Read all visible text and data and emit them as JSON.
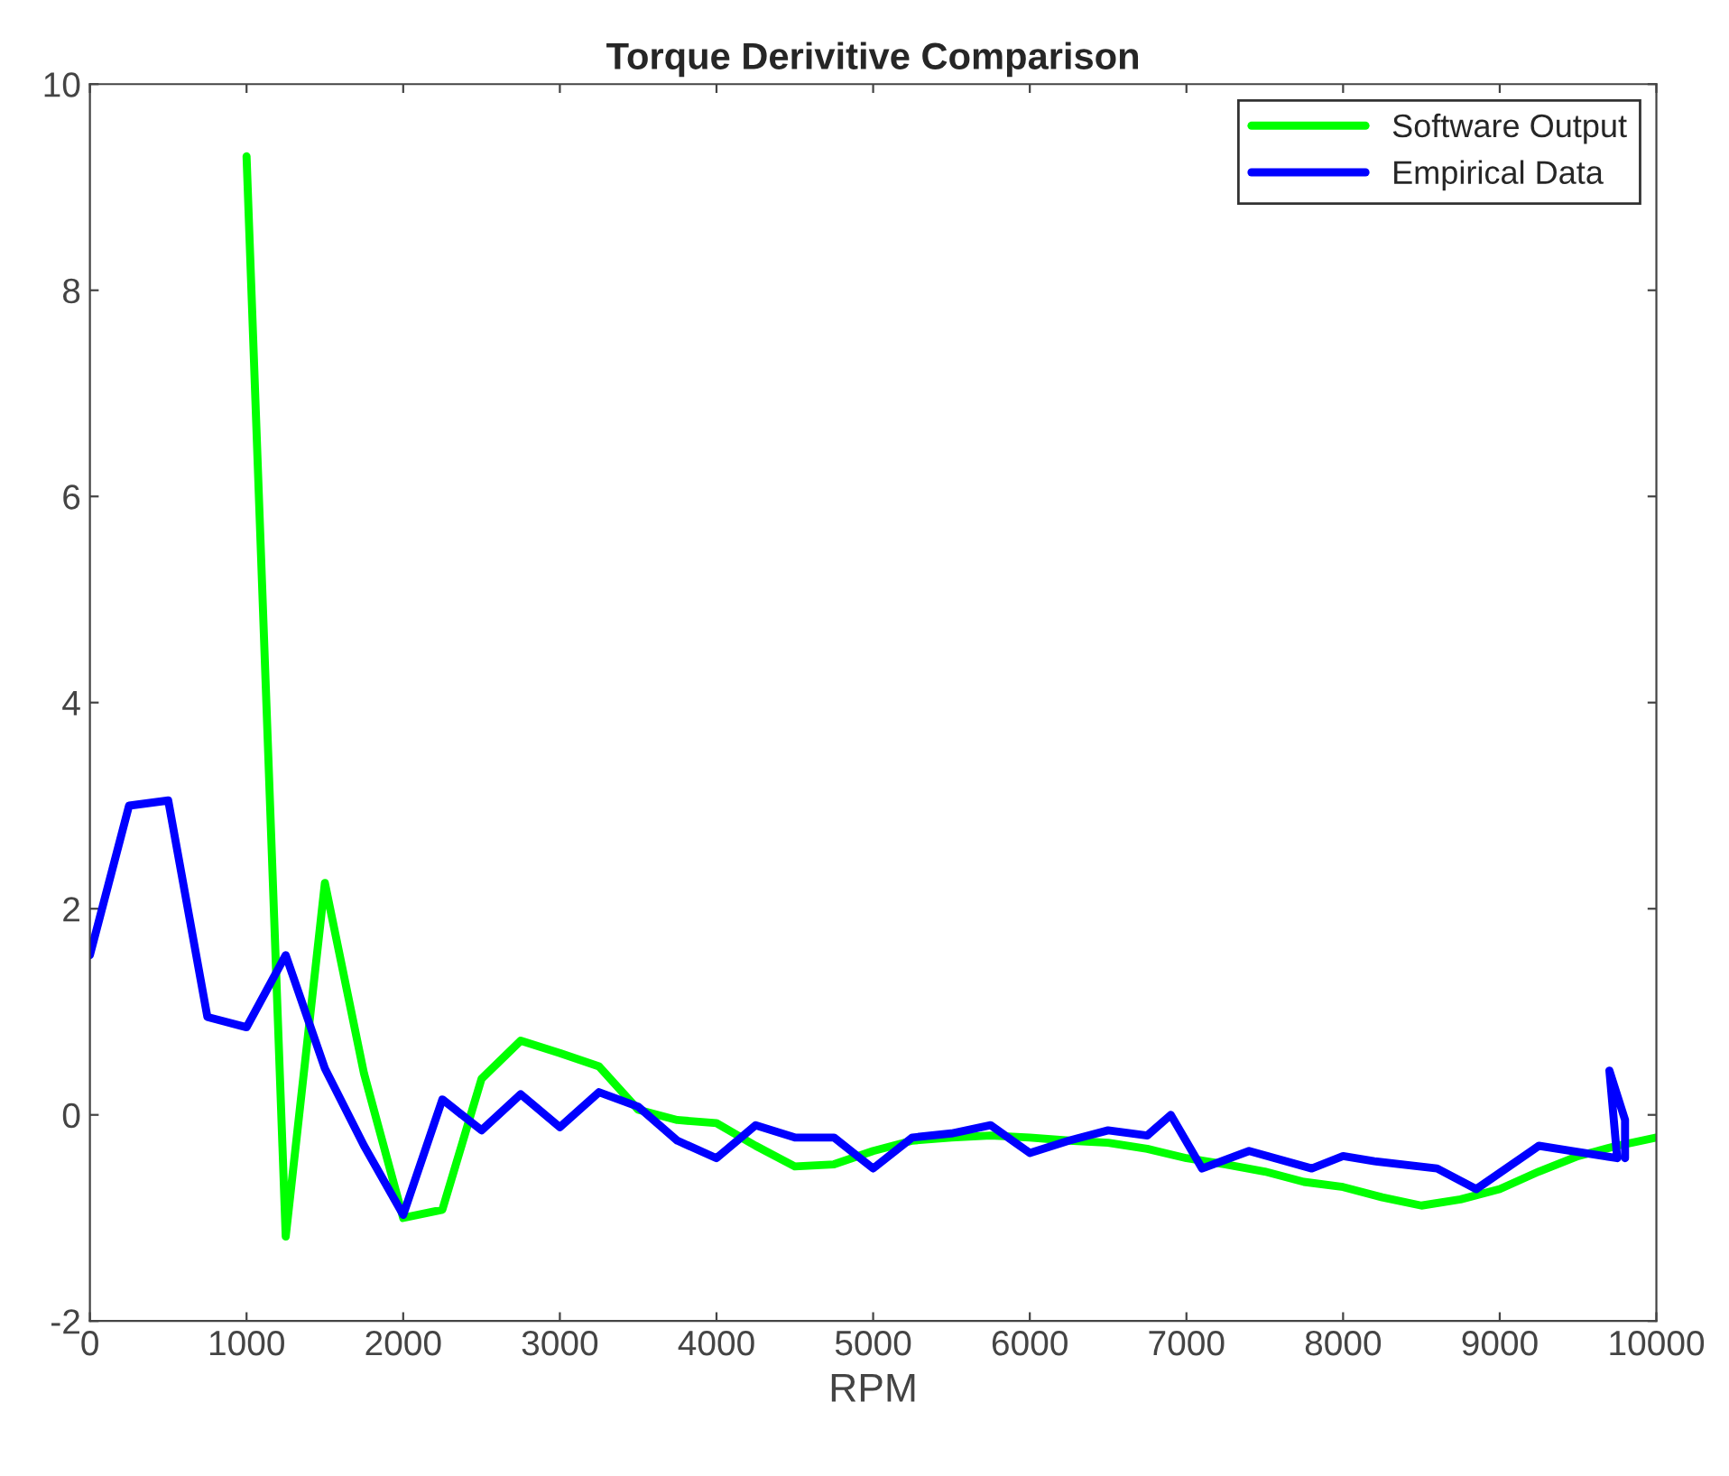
{
  "chart_data": {
    "type": "line",
    "title": "Torque Derivitive Comparison",
    "xlabel": "RPM",
    "xlim": [
      0,
      10000
    ],
    "xticks": [
      0,
      1000,
      2000,
      3000,
      4000,
      5000,
      6000,
      7000,
      8000,
      9000,
      10000
    ],
    "ylim": [
      -2,
      10
    ],
    "yticks": [
      -2,
      0,
      2,
      4,
      6,
      8,
      10
    ],
    "grid": false,
    "legend": "top right",
    "marker": "none",
    "line_style": "solid",
    "series": [
      {
        "name": "Software Output",
        "color": "#00ff00",
        "x": [
          1000,
          1250,
          1500,
          1750,
          2000,
          2250,
          2500,
          2750,
          3000,
          3250,
          3500,
          3750,
          4000,
          4250,
          4500,
          4750,
          5000,
          5250,
          5500,
          5750,
          6000,
          6250,
          6500,
          6750,
          7000,
          7250,
          7500,
          7750,
          8000,
          8250,
          8500,
          8750,
          9000,
          9250,
          9500,
          9750,
          10000
        ],
        "values": [
          9.3,
          -1.18,
          2.25,
          0.4,
          -1.0,
          -0.92,
          0.35,
          0.72,
          0.6,
          0.47,
          0.05,
          -0.05,
          -0.08,
          -0.3,
          -0.5,
          -0.48,
          -0.35,
          -0.25,
          -0.22,
          -0.2,
          -0.22,
          -0.25,
          -0.27,
          -0.33,
          -0.42,
          -0.48,
          -0.55,
          -0.65,
          -0.7,
          -0.8,
          -0.88,
          -0.82,
          -0.72,
          -0.55,
          -0.4,
          -0.3,
          -0.22
        ]
      },
      {
        "name": "Empirical Data",
        "color": "#0000ff",
        "x": [
          0,
          250,
          500,
          750,
          1000,
          1250,
          1500,
          1750,
          2000,
          2250,
          2500,
          2750,
          3000,
          3250,
          3500,
          3750,
          4000,
          4250,
          4500,
          4750,
          5000,
          5250,
          5500,
          5750,
          6000,
          6250,
          6500,
          6750,
          6900,
          7100,
          7400,
          7800,
          8000,
          8200,
          8600,
          8850,
          9250,
          9750,
          9700,
          9800,
          9800
        ],
        "values": [
          1.55,
          3.0,
          3.05,
          0.95,
          0.85,
          1.55,
          0.45,
          -0.3,
          -0.97,
          0.15,
          -0.15,
          0.2,
          -0.12,
          0.22,
          0.08,
          -0.25,
          -0.42,
          -0.1,
          -0.22,
          -0.22,
          -0.52,
          -0.22,
          -0.18,
          -0.1,
          -0.37,
          -0.25,
          -0.15,
          -0.2,
          0.0,
          -0.52,
          -0.35,
          -0.52,
          -0.4,
          -0.45,
          -0.52,
          -0.72,
          -0.3,
          -0.42,
          0.43,
          -0.05,
          -0.42
        ]
      }
    ]
  }
}
